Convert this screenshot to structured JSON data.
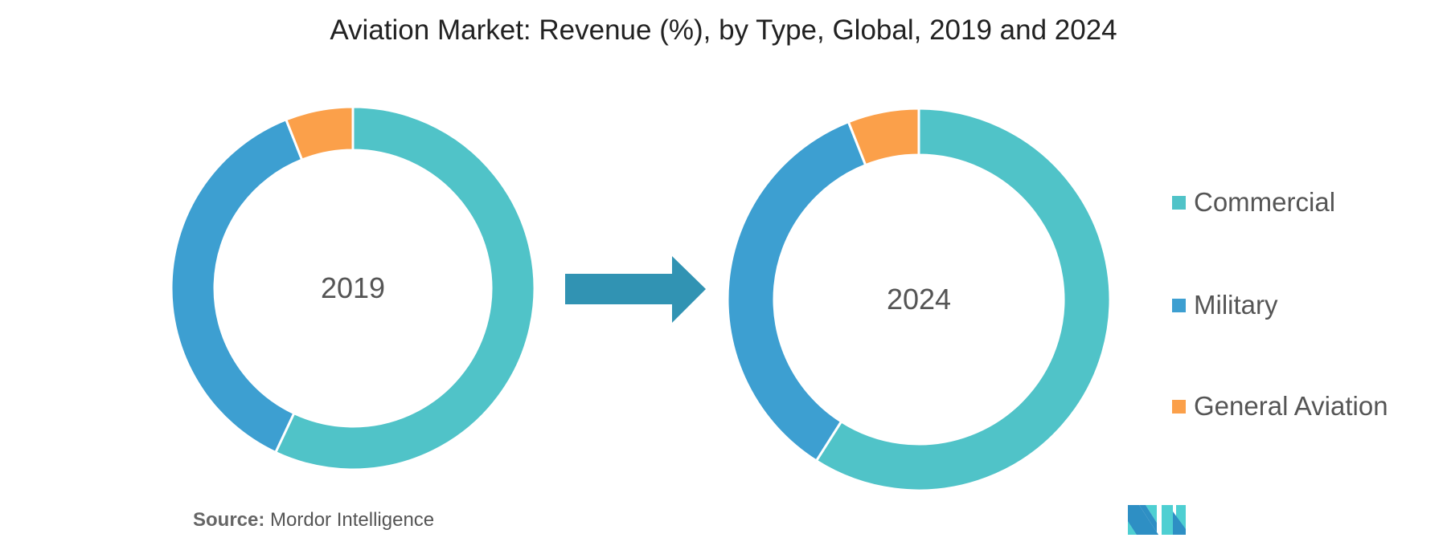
{
  "chart_data": {
    "type": "pie",
    "title": "Aviation Market: Revenue (%), by Type, Global, 2019 and 2024",
    "categories": [
      "Commercial",
      "Military",
      "General Aviation"
    ],
    "colors": [
      "#50c3c8",
      "#3d9fd1",
      "#fba04a"
    ],
    "charts": [
      {
        "label": "2019",
        "values": [
          57,
          37,
          6
        ]
      },
      {
        "label": "2024",
        "values": [
          59,
          35,
          6
        ]
      }
    ],
    "legend_position": "right"
  },
  "source": {
    "label": "Source:",
    "text": "Mordor Intelligence"
  },
  "arrow_color": "#3193b3"
}
